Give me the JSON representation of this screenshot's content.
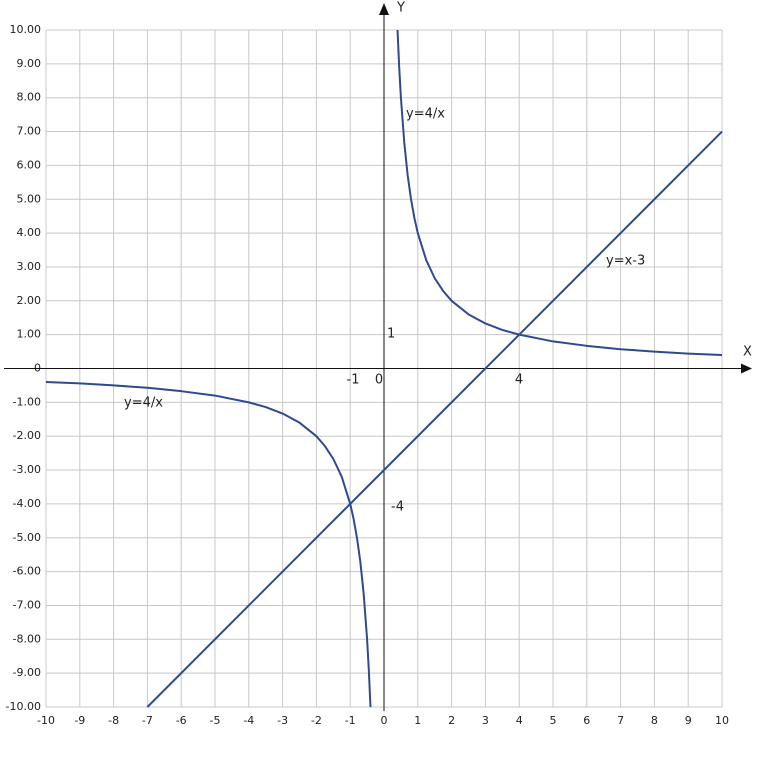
{
  "chart_data": {
    "type": "line",
    "x_label": "X",
    "y_label": "Y",
    "xlim": [
      -10,
      10
    ],
    "ylim": [
      -10,
      10
    ],
    "xticks": [
      -10,
      -9,
      -8,
      -7,
      -6,
      -5,
      -4,
      -3,
      -2,
      -1,
      0,
      1,
      2,
      3,
      4,
      5,
      6,
      7,
      8,
      9,
      10
    ],
    "yticks": [
      {
        "value": -10,
        "label": "-10.00"
      },
      {
        "value": -9,
        "label": "-9.00"
      },
      {
        "value": -8,
        "label": "-8.00"
      },
      {
        "value": -7,
        "label": "-7.00"
      },
      {
        "value": -6,
        "label": "-6.00"
      },
      {
        "value": -5,
        "label": "-5.00"
      },
      {
        "value": -4,
        "label": "-4.00"
      },
      {
        "value": -3,
        "label": "-3.00"
      },
      {
        "value": -2,
        "label": "-2.00"
      },
      {
        "value": -1,
        "label": "-1.00"
      },
      0,
      {
        "value": 1,
        "label": "1.00"
      },
      {
        "value": 2,
        "label": "2.00"
      },
      {
        "value": 3,
        "label": "3.00"
      },
      {
        "value": 4,
        "label": "4.00"
      },
      {
        "value": 5,
        "label": "5.00"
      },
      {
        "value": 6,
        "label": "6.00"
      },
      {
        "value": 7,
        "label": "7.00"
      },
      {
        "value": 8,
        "label": "8.00"
      },
      {
        "value": 9,
        "label": "9.00"
      },
      {
        "value": 10,
        "label": "10.00"
      }
    ],
    "grid": true,
    "series": [
      {
        "color": "#2d4b8e",
        "x": [
          -10,
          -9,
          -8,
          -7,
          -6,
          -5,
          -4,
          -3.5,
          -3,
          -2.5,
          -2,
          -1.75,
          -1.5,
          -1.25,
          -1,
          -0.9,
          -0.8,
          -0.7,
          -0.6,
          -0.5,
          -0.45,
          -0.4,
          0,
          0.4,
          0.45,
          0.5,
          0.6,
          0.7,
          0.8,
          0.9,
          1,
          1.25,
          1.5,
          1.75,
          2,
          2.5,
          3,
          3.5,
          4,
          5,
          6,
          7,
          8,
          9,
          10
        ],
        "values": [
          -0.4,
          -0.44,
          -0.5,
          -0.57,
          -0.67,
          -0.8,
          -1,
          -1.14,
          -1.33,
          -1.6,
          -2,
          -2.29,
          -2.67,
          -3.2,
          -4,
          -4.44,
          -5,
          -5.71,
          -6.67,
          -8,
          -8.89,
          -10,
          null,
          10,
          8.89,
          8,
          6.67,
          5.71,
          5,
          4.44,
          4,
          3.2,
          2.67,
          2.29,
          2,
          1.6,
          1.33,
          1.14,
          1,
          0.8,
          0.67,
          0.57,
          0.5,
          0.44,
          0.4
        ]
      },
      {
        "color": "#2d4b8e",
        "x": [
          -7,
          10
        ],
        "values": [
          -10,
          7
        ]
      }
    ],
    "annotations": [
      "y=4/x",
      "y=4/x",
      "y=x-3",
      "1",
      "-1",
      "0",
      "4",
      "-4"
    ]
  }
}
